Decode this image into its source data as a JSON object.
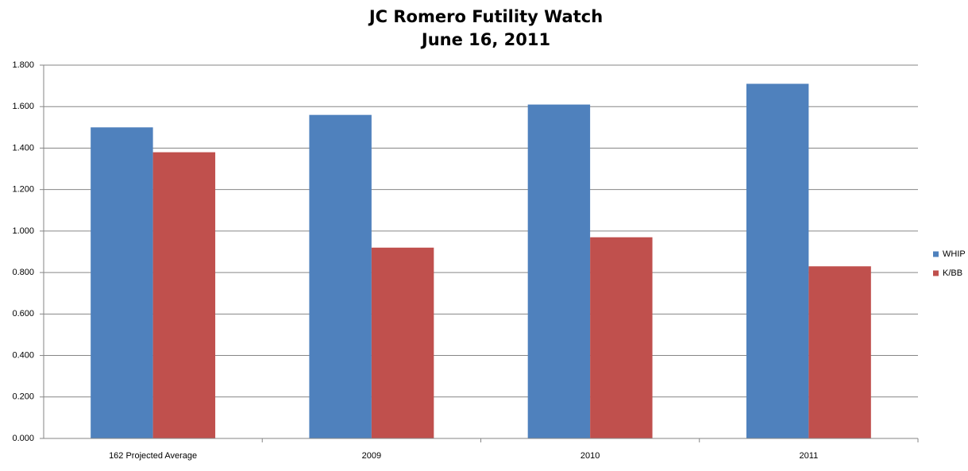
{
  "chart_data": {
    "type": "bar",
    "title": "JC Romero Futility Watch",
    "subtitle": "June 16, 2011",
    "categories": [
      "162 Projected Average",
      "2009",
      "2010",
      "2011"
    ],
    "series": [
      {
        "name": "WHIP",
        "color": "#4f81bd",
        "values": [
          1.5,
          1.56,
          1.61,
          1.71
        ]
      },
      {
        "name": "K/BB",
        "color": "#c0504d",
        "values": [
          1.38,
          0.92,
          0.97,
          0.83
        ]
      }
    ],
    "ylim": [
      0,
      1.8
    ],
    "yticks": [
      {
        "value": 0,
        "label": "0.000"
      },
      {
        "value": 0.2,
        "label": "0.200"
      },
      {
        "value": 0.4,
        "label": "0.400"
      },
      {
        "value": 0.6,
        "label": "0.600"
      },
      {
        "value": 0.8,
        "label": "0.800"
      },
      {
        "value": 1,
        "label": "1.000"
      },
      {
        "value": 1.2,
        "label": "1.200"
      },
      {
        "value": 1.4,
        "label": "1.400"
      },
      {
        "value": 1.6,
        "label": "1.600"
      },
      {
        "value": 1.8,
        "label": "1.800"
      }
    ],
    "grid": true,
    "legend": "right"
  }
}
